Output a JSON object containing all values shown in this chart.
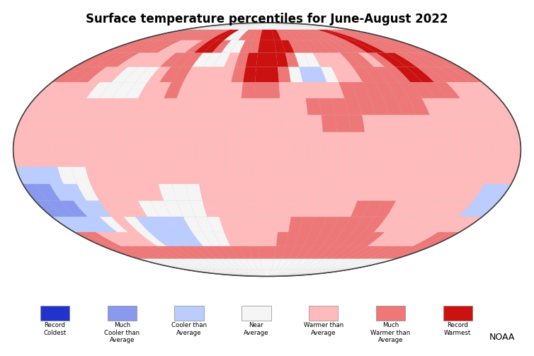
{
  "title": "Surface temperature percentiles for June-August 2022",
  "title_fontsize": 12,
  "noaa_label": "NOAA",
  "legend_items": [
    {
      "label": "Record\nColdest",
      "color": "#2233CC"
    },
    {
      "label": "Much\nCooler than\nAverage",
      "color": "#8899EE"
    },
    {
      "label": "Cooler than\nAverage",
      "color": "#BBCCFF"
    },
    {
      "label": "Near\nAverage",
      "color": "#F5F5F5"
    },
    {
      "label": "Warmer than\nAverage",
      "color": "#FFBBBB"
    },
    {
      "label": "Much\nWarmer than\nAverage",
      "color": "#EE7777"
    },
    {
      "label": "Record\nWarmest",
      "color": "#CC1111"
    }
  ],
  "category_colors": [
    "#2233CC",
    "#8899EE",
    "#BBCCFF",
    "#F5F5F5",
    "#FFBBBB",
    "#EE7777",
    "#CC1111"
  ],
  "background_color": "#ffffff",
  "ocean_color": "#c8c8c8",
  "grid_lon_step": 10,
  "grid_lat_step": 10,
  "grid_data": [
    [
      3,
      3,
      3,
      3,
      3,
      3,
      3,
      3,
      3,
      3,
      3,
      3,
      3,
      3,
      3,
      3,
      3,
      3,
      3,
      3,
      3,
      3,
      3,
      3,
      3,
      3,
      3,
      3,
      3,
      3,
      3,
      3,
      3,
      3,
      3,
      3
    ],
    [
      5,
      5,
      5,
      5,
      5,
      5,
      5,
      5,
      5,
      5,
      6,
      6,
      3,
      3,
      5,
      5,
      5,
      6,
      6,
      6,
      5,
      5,
      5,
      5,
      5,
      5,
      5,
      5,
      5,
      6,
      6,
      5,
      5,
      5,
      5,
      5
    ],
    [
      5,
      5,
      5,
      5,
      5,
      5,
      4,
      4,
      4,
      5,
      6,
      6,
      5,
      3,
      3,
      5,
      5,
      6,
      6,
      6,
      6,
      5,
      5,
      5,
      5,
      5,
      5,
      5,
      5,
      6,
      6,
      5,
      5,
      5,
      5,
      5
    ],
    [
      5,
      5,
      5,
      5,
      4,
      4,
      4,
      4,
      5,
      5,
      5,
      3,
      3,
      3,
      4,
      5,
      6,
      6,
      6,
      6,
      5,
      3,
      3,
      4,
      4,
      4,
      5,
      5,
      4,
      5,
      6,
      6,
      5,
      5,
      5,
      5
    ],
    [
      5,
      5,
      5,
      4,
      4,
      3,
      3,
      3,
      4,
      5,
      5,
      4,
      4,
      4,
      4,
      5,
      6,
      6,
      6,
      5,
      3,
      2,
      2,
      3,
      4,
      4,
      5,
      5,
      5,
      5,
      6,
      6,
      5,
      5,
      5,
      5
    ],
    [
      4,
      4,
      4,
      4,
      3,
      3,
      3,
      3,
      4,
      4,
      5,
      4,
      4,
      4,
      4,
      4,
      5,
      5,
      5,
      4,
      4,
      4,
      4,
      4,
      5,
      5,
      5,
      5,
      5,
      5,
      5,
      5,
      5,
      4,
      4,
      4
    ],
    [
      4,
      4,
      4,
      4,
      4,
      4,
      4,
      4,
      4,
      4,
      4,
      4,
      4,
      4,
      4,
      4,
      4,
      4,
      4,
      4,
      4,
      5,
      5,
      5,
      5,
      5,
      5,
      5,
      5,
      5,
      4,
      4,
      4,
      4,
      4,
      4
    ],
    [
      4,
      4,
      4,
      4,
      4,
      4,
      4,
      4,
      4,
      4,
      4,
      4,
      4,
      4,
      4,
      4,
      4,
      4,
      4,
      4,
      4,
      4,
      5,
      5,
      5,
      4,
      4,
      4,
      4,
      4,
      4,
      4,
      4,
      4,
      4,
      4
    ],
    [
      4,
      4,
      4,
      4,
      4,
      4,
      4,
      4,
      4,
      4,
      4,
      4,
      4,
      4,
      4,
      4,
      4,
      4,
      4,
      4,
      4,
      4,
      4,
      4,
      4,
      4,
      4,
      4,
      4,
      4,
      4,
      4,
      4,
      4,
      4,
      4
    ],
    [
      4,
      4,
      4,
      4,
      4,
      4,
      4,
      4,
      4,
      4,
      4,
      4,
      4,
      4,
      4,
      4,
      4,
      4,
      4,
      4,
      4,
      4,
      4,
      4,
      4,
      4,
      4,
      4,
      4,
      4,
      4,
      4,
      4,
      4,
      4,
      4
    ],
    [
      2,
      2,
      2,
      3,
      3,
      4,
      4,
      4,
      4,
      4,
      4,
      4,
      4,
      4,
      4,
      4,
      4,
      4,
      4,
      4,
      4,
      4,
      4,
      4,
      4,
      4,
      4,
      4,
      4,
      4,
      4,
      4,
      4,
      4,
      4,
      4
    ],
    [
      1,
      1,
      2,
      2,
      3,
      4,
      4,
      4,
      4,
      4,
      3,
      3,
      3,
      4,
      4,
      4,
      4,
      4,
      4,
      4,
      4,
      4,
      4,
      4,
      4,
      4,
      4,
      4,
      4,
      4,
      4,
      4,
      4,
      4,
      2,
      2
    ],
    [
      1,
      1,
      1,
      2,
      2,
      4,
      4,
      4,
      3,
      3,
      3,
      3,
      3,
      4,
      4,
      4,
      4,
      4,
      4,
      4,
      4,
      4,
      4,
      4,
      4,
      5,
      5,
      5,
      4,
      4,
      4,
      4,
      4,
      4,
      2,
      2
    ],
    [
      2,
      2,
      2,
      2,
      3,
      4,
      3,
      2,
      2,
      2,
      2,
      3,
      3,
      3,
      4,
      4,
      4,
      4,
      4,
      4,
      5,
      5,
      5,
      5,
      5,
      5,
      5,
      5,
      4,
      4,
      4,
      4,
      4,
      4,
      4,
      4
    ],
    [
      5,
      5,
      4,
      4,
      4,
      4,
      3,
      2,
      2,
      2,
      2,
      3,
      3,
      3,
      4,
      4,
      4,
      4,
      4,
      5,
      5,
      5,
      5,
      5,
      5,
      5,
      5,
      5,
      5,
      4,
      4,
      4,
      4,
      4,
      5,
      5
    ],
    [
      5,
      5,
      5,
      5,
      5,
      5,
      5,
      5,
      5,
      5,
      5,
      5,
      5,
      5,
      5,
      5,
      5,
      5,
      5,
      5,
      5,
      5,
      5,
      5,
      5,
      5,
      5,
      5,
      5,
      5,
      5,
      5,
      5,
      5,
      5,
      5
    ],
    [
      3,
      3,
      3,
      3,
      3,
      3,
      3,
      3,
      3,
      3,
      3,
      3,
      3,
      3,
      3,
      3,
      3,
      3,
      3,
      3,
      3,
      3,
      3,
      3,
      3,
      3,
      3,
      3,
      3,
      3,
      3,
      3,
      3,
      3,
      3,
      3
    ],
    [
      3,
      3,
      3,
      3,
      3,
      3,
      3,
      3,
      3,
      3,
      3,
      3,
      3,
      3,
      3,
      3,
      3,
      3,
      3,
      3,
      3,
      3,
      3,
      3,
      3,
      3,
      3,
      3,
      3,
      3,
      3,
      3,
      3,
      3,
      3,
      3
    ]
  ]
}
